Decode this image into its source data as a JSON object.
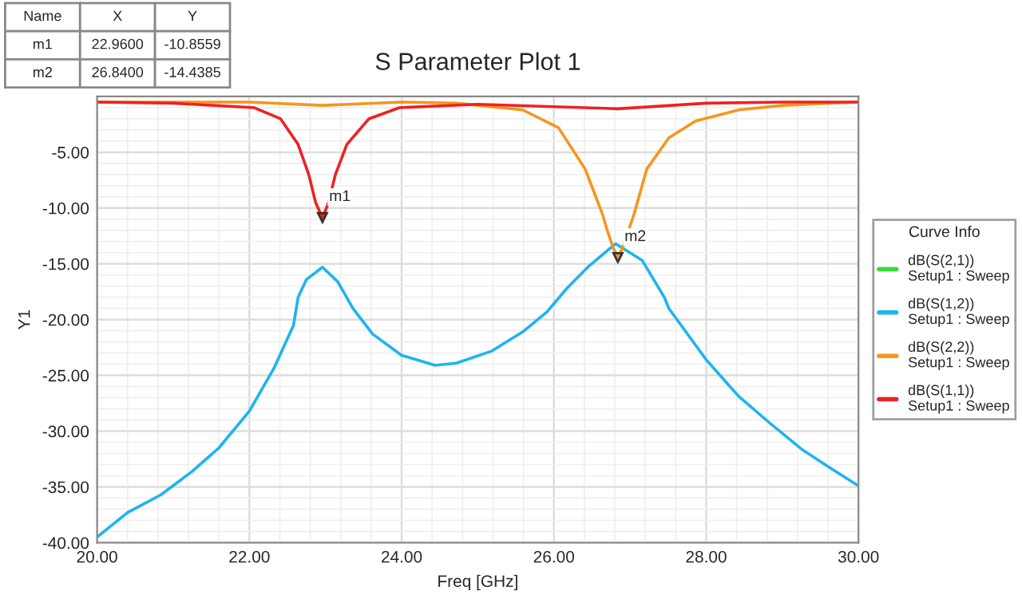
{
  "chart_data": {
    "type": "line",
    "title": "S Parameter Plot 1",
    "xlabel": "Freq [GHz]",
    "ylabel": "Y1",
    "legend_title": "Curve Info",
    "xlim": [
      20,
      30
    ],
    "ylim": [
      -40,
      0
    ],
    "xticks": [
      {
        "value": 20,
        "label": "20.00"
      },
      {
        "value": 22,
        "label": "22.00"
      },
      {
        "value": 24,
        "label": "24.00"
      },
      {
        "value": 26,
        "label": "26.00"
      },
      {
        "value": 28,
        "label": "28.00"
      },
      {
        "value": 30,
        "label": "30.00"
      }
    ],
    "yticks": [
      {
        "value": -40,
        "label": "-40.00"
      },
      {
        "value": -35,
        "label": "-35.00"
      },
      {
        "value": -30,
        "label": "-30.00"
      },
      {
        "value": -25,
        "label": "-25.00"
      },
      {
        "value": -20,
        "label": "-20.00"
      },
      {
        "value": -15,
        "label": "-15.00"
      },
      {
        "value": -10,
        "label": "-10.00"
      },
      {
        "value": -5,
        "label": "-5.00"
      }
    ],
    "grid": true,
    "legend": "right",
    "line_style": "solid",
    "series": [
      {
        "name": "dB(S(2,1))\nSetup1 : Sweep",
        "color": "#33dd33"
      },
      {
        "name": "dB(S(1,2))\nSetup1 : Sweep",
        "color": "#1eb4f0",
        "x": [
          20,
          20.4,
          20.84,
          21.25,
          21.6,
          22.0,
          22.32,
          22.58,
          22.64,
          22.75,
          22.96,
          23.16,
          23.36,
          23.62,
          24.0,
          24.44,
          24.72,
          25.19,
          25.59,
          25.91,
          26.17,
          26.46,
          26.81,
          27.16,
          27.45,
          27.51,
          28.0,
          28.43,
          28.84,
          29.25,
          29.65,
          30
        ],
        "values": [
          -39.5,
          -37.3,
          -35.7,
          -33.6,
          -31.5,
          -28.2,
          -24.4,
          -20.5,
          -18.0,
          -16.4,
          -15.3,
          -16.6,
          -19.0,
          -21.3,
          -23.2,
          -24.1,
          -23.9,
          -22.8,
          -21.1,
          -19.3,
          -17.2,
          -15.2,
          -13.2,
          -14.7,
          -18.0,
          -19.0,
          -23.6,
          -26.9,
          -29.3,
          -31.6,
          -33.4,
          -34.9
        ]
      },
      {
        "name": "dB(S(2,2))\nSetup1 : Sweep",
        "color": "#f5961e",
        "x": [
          20,
          21,
          22,
          22.96,
          24,
          24.72,
          25.59,
          26.06,
          26.41,
          26.64,
          26.7,
          26.78,
          26.84,
          26.9,
          26.98,
          27.05,
          27.22,
          27.51,
          27.86,
          28.43,
          29,
          30
        ],
        "values": [
          -0.5,
          -0.5,
          -0.5,
          -0.8,
          -0.5,
          -0.6,
          -1.2,
          -2.8,
          -6.5,
          -10.6,
          -12.0,
          -13.6,
          -14.4,
          -13.6,
          -12.0,
          -10.6,
          -6.5,
          -3.7,
          -2.2,
          -1.2,
          -0.8,
          -0.5
        ]
      },
      {
        "name": "dB(S(1,1))\nSetup1 : Sweep",
        "color": "#ee2222",
        "x": [
          20,
          21,
          22.06,
          22.41,
          22.64,
          22.78,
          22.87,
          22.96,
          23.04,
          23.13,
          23.28,
          23.57,
          23.97,
          25,
          26.84,
          28,
          29,
          30
        ],
        "values": [
          -0.5,
          -0.6,
          -1.0,
          -2.0,
          -4.3,
          -7.0,
          -9.5,
          -10.9,
          -9.5,
          -7.0,
          -4.3,
          -2.0,
          -1.0,
          -0.7,
          -1.1,
          -0.6,
          -0.5,
          -0.5
        ]
      }
    ],
    "annotations": [
      "Name",
      "X",
      "Y",
      "m1",
      "22.9600",
      "-10.8559",
      "m2",
      "26.8400",
      "-14.4385",
      {
        "text": "m1",
        "x": 22.96,
        "y": -10.8559
      },
      {
        "text": "m2",
        "x": 26.84,
        "y": -14.4385
      }
    ]
  }
}
